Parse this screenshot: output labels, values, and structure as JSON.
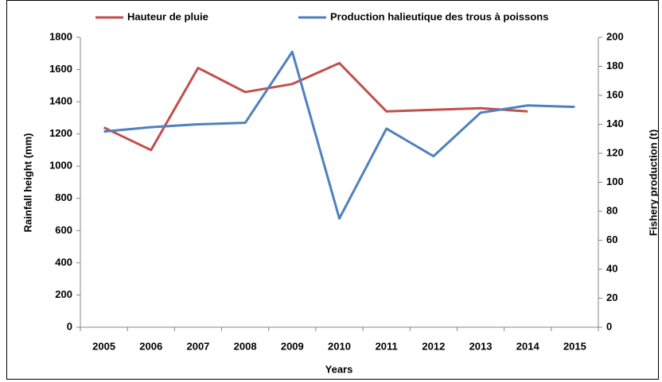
{
  "chart_data": {
    "type": "line",
    "x_label": "Years",
    "y_label": "Rainfall height (mm)",
    "y2_label": "Fishery production (t)",
    "categories": [
      "2005",
      "2006",
      "2007",
      "2008",
      "2009",
      "2010",
      "2011",
      "2012",
      "2013",
      "2014",
      "2015"
    ],
    "series": [
      {
        "name": "Hauteur de pluie",
        "color": "#c0504d",
        "values": [
          1240,
          1100,
          1610,
          1460,
          1510,
          1640,
          1340,
          1350,
          1360,
          1340,
          null
        ]
      },
      {
        "name": "Production halieutique des trous à poissons",
        "color": "#4f81bd",
        "axis": "y2",
        "values": [
          135,
          138,
          140,
          141,
          190,
          75,
          137,
          118,
          148,
          153,
          152
        ]
      }
    ],
    "ylim": [
      0,
      1800
    ],
    "yticks": [
      0,
      200,
      400,
      600,
      800,
      1000,
      1200,
      1400,
      1600,
      1800
    ],
    "y2lim": [
      0,
      200
    ],
    "y2ticks": [
      0,
      20,
      40,
      60,
      80,
      100,
      120,
      140,
      160,
      180,
      200
    ],
    "grid": false,
    "legend": "top"
  }
}
